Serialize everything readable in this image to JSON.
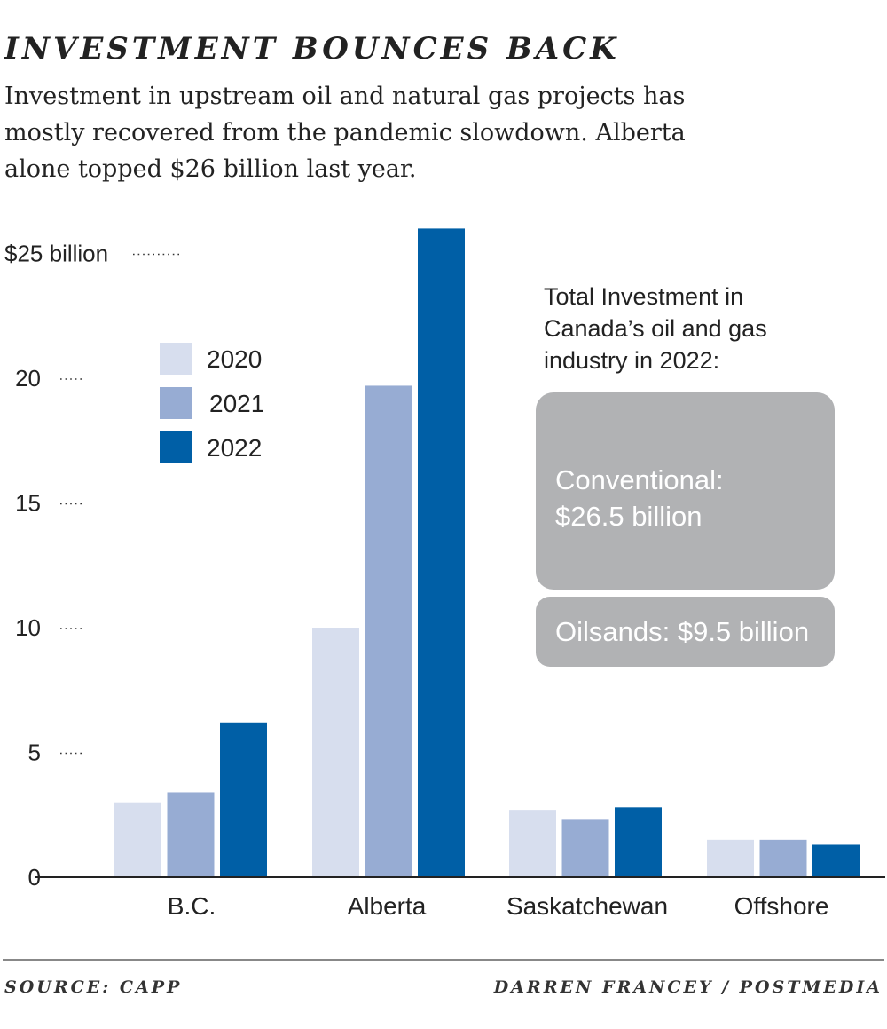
{
  "header": {
    "title": "INVESTMENT BOUNCES BACK",
    "subtitle_lines": [
      "Investment in upstream oil and natural gas projects has",
      "mostly recovered from the pandemic slowdown. Alberta",
      "alone topped $26 billion last year."
    ]
  },
  "chart_data": {
    "type": "bar",
    "categories": [
      "B.C.",
      "Alberta",
      "Saskatchewan",
      "Offshore"
    ],
    "series": [
      {
        "name": "2020",
        "color": "#d7deee",
        "values": [
          3.0,
          10.0,
          2.7,
          1.5
        ]
      },
      {
        "name": "2021",
        "color": "#97acd3",
        "values": [
          3.4,
          19.7,
          2.3,
          1.5
        ]
      },
      {
        "name": "2022",
        "color": "#005fa6",
        "values": [
          6.2,
          26.0,
          2.8,
          1.3
        ]
      }
    ],
    "yticks": [
      0,
      5,
      10,
      15,
      20,
      25
    ],
    "ytick_labels": [
      "0",
      "5",
      "10",
      "15",
      "20",
      "$25 billion"
    ],
    "ylim": [
      0,
      26
    ]
  },
  "note": {
    "heading_lines": [
      "Total Investment in",
      "Canada’s oil and gas",
      "industry in 2022:"
    ],
    "conventional_lines": [
      "Conventional:",
      "$26.5 billion"
    ],
    "oilsands_label": "Oilsands: $9.5 billion",
    "box_color": "#b1b2b4"
  },
  "footer": {
    "source": "SOURCE: CAPP",
    "credit": "DARREN FRANCEY / POSTMEDIA"
  }
}
